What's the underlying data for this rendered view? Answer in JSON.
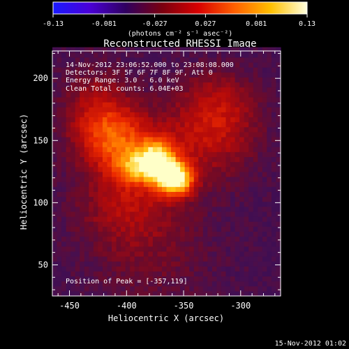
{
  "chart_data": {
    "type": "heatmap",
    "title": "Reconstructed RHESSI Image",
    "xlabel": "Heliocentric X (arcsec)",
    "ylabel": "Heliocentric Y (arcsec)",
    "xlim": [
      -465,
      -265
    ],
    "ylim": [
      25,
      222
    ],
    "x_ticks": [
      -450,
      -400,
      -350,
      -300
    ],
    "y_ticks": [
      50,
      100,
      150,
      200
    ],
    "colorbar": {
      "range": [
        -0.13,
        0.13
      ],
      "ticks": [
        "-0.13",
        "-0.081",
        "-0.027",
        "0.027",
        "0.081",
        "0.13"
      ],
      "label": "(photons cm⁻² s⁻¹ asec⁻²)",
      "colors": [
        "#1a1aff",
        "#4a00d8",
        "#300060",
        "#7a0010",
        "#d80000",
        "#ff6000",
        "#ffc000",
        "#ffffe0"
      ]
    },
    "annotations": [
      "14-Nov-2012 23:06:52.000 to 23:08:08.000",
      "Detectors: 3F 5F 6F 7F 8F 9F, Att 0",
      "Energy Range: 3.0 - 6.0 keV",
      "Clean     Total counts: 6.04E+03"
    ],
    "peak_label": "Position of Peak = [-357,119]",
    "peak": {
      "x": -357,
      "y": 119,
      "value": 0.13
    },
    "sources": [
      {
        "x": -357,
        "y": 119,
        "amp": 1.0,
        "sx": 11,
        "sy": 9
      },
      {
        "x": -372,
        "y": 135,
        "amp": 0.75,
        "sx": 12,
        "sy": 12
      },
      {
        "x": -392,
        "y": 128,
        "amp": 0.45,
        "sx": 14,
        "sy": 10
      },
      {
        "x": -405,
        "y": 150,
        "amp": 0.45,
        "sx": 22,
        "sy": 18
      },
      {
        "x": -425,
        "y": 170,
        "amp": 0.35,
        "sx": 22,
        "sy": 25
      },
      {
        "x": -330,
        "y": 150,
        "amp": 0.3,
        "sx": 30,
        "sy": 25
      },
      {
        "x": -400,
        "y": 100,
        "amp": 0.28,
        "sx": 30,
        "sy": 22
      },
      {
        "x": -320,
        "y": 180,
        "amp": 0.25,
        "sx": 25,
        "sy": 20
      },
      {
        "x": -380,
        "y": 60,
        "amp": 0.15,
        "sx": 40,
        "sy": 30
      }
    ],
    "timestamp": "15-Nov-2012 01:02"
  }
}
